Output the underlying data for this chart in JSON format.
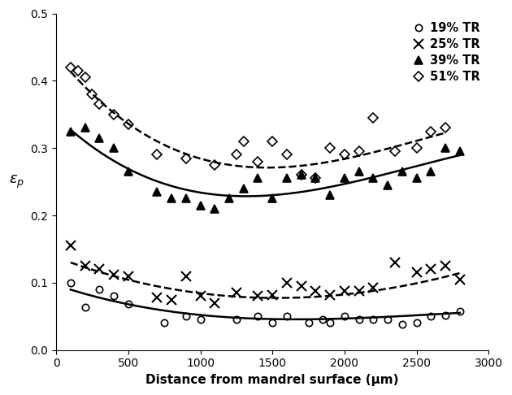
{
  "title": "",
  "xlabel": "Distance from mandrel surface (μm)",
  "ylabel": "ε p",
  "xlim": [
    0,
    3000
  ],
  "ylim": [
    0,
    0.5
  ],
  "xticks": [
    0,
    500,
    1000,
    1500,
    2000,
    2500,
    3000
  ],
  "yticks": [
    0,
    0.1,
    0.2,
    0.3,
    0.4,
    0.5
  ],
  "series_19": {
    "label": "19% TR",
    "marker": "o",
    "fillstyle": "none",
    "color": "black",
    "linestyle": "-",
    "x": [
      100,
      200,
      300,
      400,
      500,
      750,
      900,
      1000,
      1250,
      1400,
      1500,
      1600,
      1750,
      1850,
      1900,
      2000,
      2100,
      2200,
      2300,
      2400,
      2500,
      2600,
      2700,
      2800
    ],
    "y": [
      0.1,
      0.063,
      0.09,
      0.08,
      0.068,
      0.04,
      0.05,
      0.045,
      0.045,
      0.05,
      0.04,
      0.05,
      0.04,
      0.045,
      0.04,
      0.05,
      0.045,
      0.045,
      0.045,
      0.038,
      0.04,
      0.05,
      0.052,
      0.058
    ],
    "fit_x": [
      100,
      500,
      1000,
      1500,
      2000,
      2500,
      2800
    ],
    "fit_y": [
      0.09,
      0.068,
      0.05,
      0.048,
      0.048,
      0.048,
      0.057
    ]
  },
  "series_25": {
    "label": "25% TR",
    "marker": "x",
    "fillstyle": "full",
    "color": "black",
    "linestyle": "--",
    "x": [
      100,
      200,
      300,
      400,
      500,
      700,
      800,
      900,
      1000,
      1100,
      1250,
      1400,
      1500,
      1600,
      1700,
      1800,
      1900,
      2000,
      2100,
      2200,
      2350,
      2500,
      2600,
      2700,
      2800
    ],
    "y": [
      0.155,
      0.125,
      0.12,
      0.112,
      0.11,
      0.078,
      0.075,
      0.11,
      0.08,
      0.07,
      0.085,
      0.08,
      0.082,
      0.1,
      0.095,
      0.088,
      0.082,
      0.088,
      0.088,
      0.092,
      0.13,
      0.115,
      0.12,
      0.125,
      0.105
    ],
    "fit_x": [
      100,
      500,
      1000,
      1500,
      2000,
      2500,
      2800
    ],
    "fit_y": [
      0.13,
      0.105,
      0.082,
      0.08,
      0.082,
      0.098,
      0.115
    ]
  },
  "series_39": {
    "label": "39% TR",
    "marker": "^",
    "fillstyle": "full",
    "color": "black",
    "linestyle": "-",
    "x": [
      100,
      200,
      300,
      400,
      500,
      700,
      800,
      900,
      1000,
      1100,
      1200,
      1300,
      1400,
      1500,
      1600,
      1700,
      1800,
      1900,
      2000,
      2100,
      2200,
      2300,
      2400,
      2500,
      2600,
      2700,
      2800
    ],
    "y": [
      0.325,
      0.33,
      0.315,
      0.3,
      0.265,
      0.235,
      0.225,
      0.225,
      0.215,
      0.21,
      0.225,
      0.24,
      0.255,
      0.225,
      0.255,
      0.26,
      0.255,
      0.23,
      0.255,
      0.265,
      0.255,
      0.245,
      0.265,
      0.255,
      0.265,
      0.3,
      0.295
    ],
    "fit_x": [
      100,
      500,
      1000,
      1500,
      2000,
      2500,
      2800
    ],
    "fit_y": [
      0.328,
      0.27,
      0.228,
      0.235,
      0.252,
      0.262,
      0.295
    ]
  },
  "series_51": {
    "label": "51% TR",
    "marker": "D",
    "fillstyle": "none",
    "color": "black",
    "linestyle": "--",
    "x": [
      100,
      150,
      200,
      250,
      300,
      400,
      500,
      700,
      900,
      1100,
      1250,
      1300,
      1400,
      1500,
      1600,
      1700,
      1800,
      1900,
      2000,
      2100,
      2200,
      2350,
      2500,
      2600,
      2700
    ],
    "y": [
      0.42,
      0.415,
      0.405,
      0.38,
      0.365,
      0.35,
      0.335,
      0.29,
      0.285,
      0.275,
      0.29,
      0.31,
      0.28,
      0.31,
      0.29,
      0.26,
      0.255,
      0.3,
      0.29,
      0.295,
      0.345,
      0.295,
      0.3,
      0.325,
      0.33
    ],
    "fit_x": [
      100,
      500,
      1000,
      1500,
      2000,
      2500,
      2700
    ],
    "fit_y": [
      0.415,
      0.335,
      0.28,
      0.278,
      0.285,
      0.3,
      0.33
    ]
  }
}
